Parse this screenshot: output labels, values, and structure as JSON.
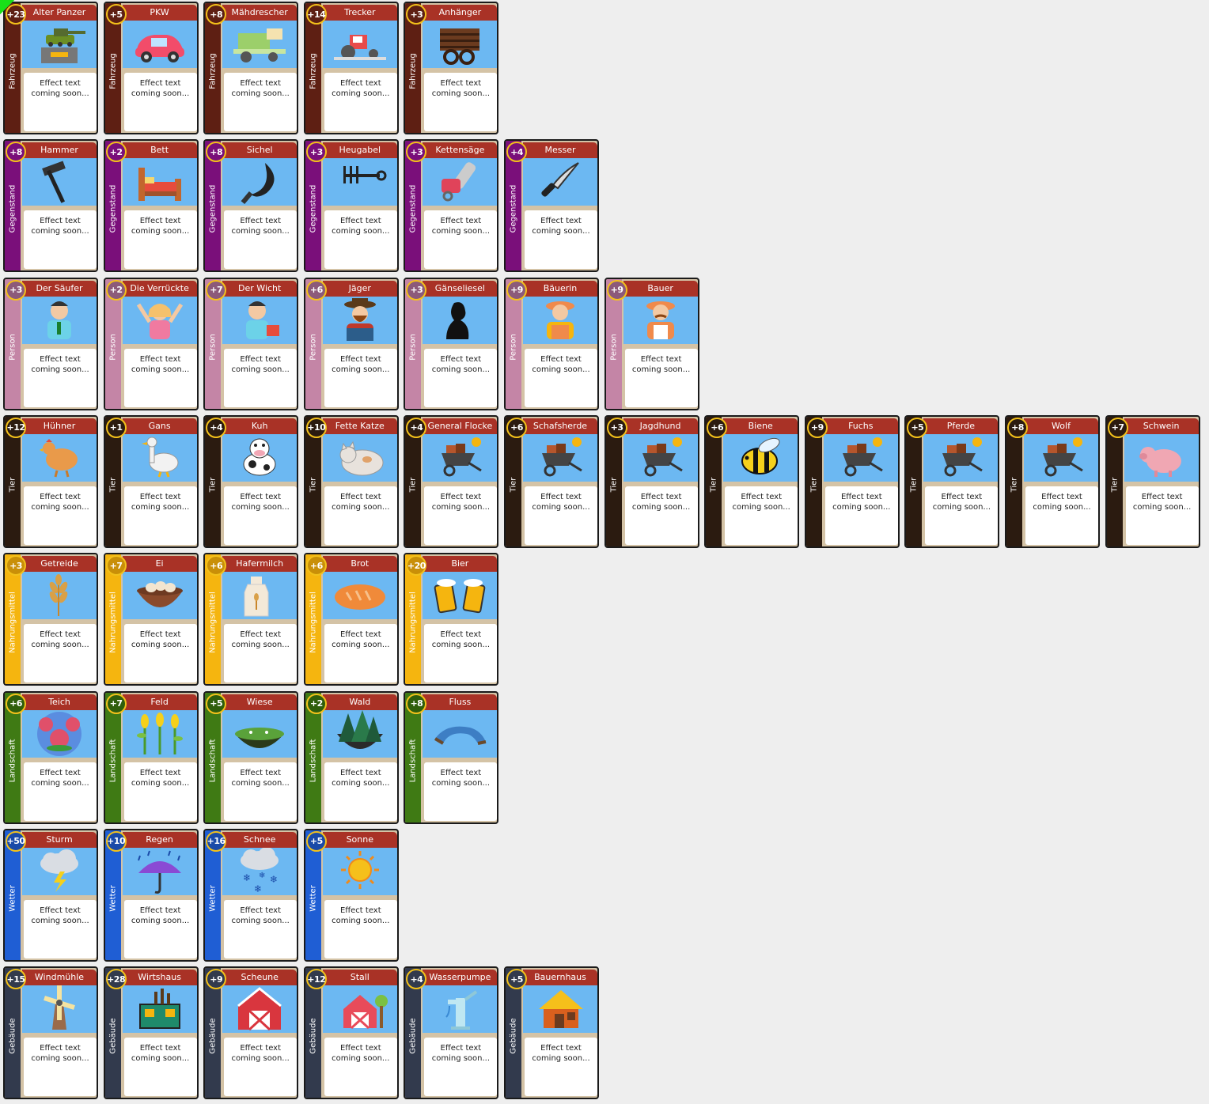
{
  "effect_text": "Effect text coming soon...",
  "categories": [
    {
      "name": "Fahrzeug",
      "band_color": "#5e1f13",
      "badge_color": "#5e1f13",
      "cards": [
        {
          "title": "Alter Panzer",
          "value": "+23",
          "icon": "tank-icon"
        },
        {
          "title": "PKW",
          "value": "+5",
          "icon": "car-icon"
        },
        {
          "title": "Mähdrescher",
          "value": "+8",
          "icon": "harvester-icon"
        },
        {
          "title": "Trecker",
          "value": "+14",
          "icon": "tractor-icon"
        },
        {
          "title": "Anhänger",
          "value": "+3",
          "icon": "trailer-icon"
        }
      ]
    },
    {
      "name": "Gegenstand",
      "band_color": "#7a0f7a",
      "badge_color": "#7a0f7a",
      "cards": [
        {
          "title": "Hammer",
          "value": "+8",
          "icon": "hammer-icon"
        },
        {
          "title": "Bett",
          "value": "+2",
          "icon": "bed-icon"
        },
        {
          "title": "Sichel",
          "value": "+8",
          "icon": "sickle-icon"
        },
        {
          "title": "Heugabel",
          "value": "+3",
          "icon": "pitchfork-icon"
        },
        {
          "title": "Kettensäge",
          "value": "+3",
          "icon": "chainsaw-icon"
        },
        {
          "title": "Messer",
          "value": "+4",
          "icon": "knife-icon"
        }
      ]
    },
    {
      "name": "Person",
      "band_color": "#c485a6",
      "badge_color": "#8c5a7a",
      "cards": [
        {
          "title": "Der Säufer",
          "value": "+3",
          "icon": "drunk-man-icon"
        },
        {
          "title": "Die Verrückte",
          "value": "+2",
          "icon": "crazy-woman-icon"
        },
        {
          "title": "Der Wicht",
          "value": "+7",
          "icon": "small-man-icon"
        },
        {
          "title": "Jäger",
          "value": "+6",
          "icon": "hunter-icon"
        },
        {
          "title": "Gänseliesel",
          "value": "+3",
          "icon": "goose-girl-icon"
        },
        {
          "title": "Bäuerin",
          "value": "+9",
          "icon": "farmer-woman-icon"
        },
        {
          "title": "Bauer",
          "value": "+9",
          "icon": "farmer-icon"
        }
      ]
    },
    {
      "name": "Tier",
      "band_color": "#2b1b10",
      "badge_color": "#2b1b10",
      "cards": [
        {
          "title": "Hühner",
          "value": "+12",
          "icon": "chicken-icon"
        },
        {
          "title": "Gans",
          "value": "+1",
          "icon": "goose-icon"
        },
        {
          "title": "Kuh",
          "value": "+4",
          "icon": "cow-icon"
        },
        {
          "title": "Fette Katze",
          "value": "+10",
          "icon": "cat-icon"
        },
        {
          "title": "General Flocke",
          "value": "+4",
          "icon": "wheelbarrow-icon"
        },
        {
          "title": "Schafsherde",
          "value": "+6",
          "icon": "wheelbarrow-icon"
        },
        {
          "title": "Jagdhund",
          "value": "+3",
          "icon": "wheelbarrow-icon"
        },
        {
          "title": "Biene",
          "value": "+6",
          "icon": "bee-icon"
        },
        {
          "title": "Fuchs",
          "value": "+9",
          "icon": "wheelbarrow-icon"
        },
        {
          "title": "Pferde",
          "value": "+5",
          "icon": "wheelbarrow-icon"
        },
        {
          "title": "Wolf",
          "value": "+8",
          "icon": "wheelbarrow-icon"
        },
        {
          "title": "Schwein",
          "value": "+7",
          "icon": "pig-icon"
        }
      ]
    },
    {
      "name": "Nahrungsmittel",
      "band_color": "#f5b50f",
      "badge_color": "#c98f08",
      "cards": [
        {
          "title": "Getreide",
          "value": "+3",
          "icon": "wheat-icon"
        },
        {
          "title": "Ei",
          "value": "+7",
          "icon": "egg-bowl-icon"
        },
        {
          "title": "Hafermilch",
          "value": "+6",
          "icon": "oat-milk-icon"
        },
        {
          "title": "Brot",
          "value": "+6",
          "icon": "bread-icon"
        },
        {
          "title": "Bier",
          "value": "+20",
          "icon": "beer-icon"
        }
      ]
    },
    {
      "name": "Landschaft",
      "band_color": "#3f7a14",
      "badge_color": "#2f5e0c",
      "cards": [
        {
          "title": "Teich",
          "value": "+6",
          "icon": "pond-icon"
        },
        {
          "title": "Feld",
          "value": "+7",
          "icon": "field-icon"
        },
        {
          "title": "Wiese",
          "value": "+5",
          "icon": "meadow-icon"
        },
        {
          "title": "Wald",
          "value": "+2",
          "icon": "forest-icon"
        },
        {
          "title": "Fluss",
          "value": "+8",
          "icon": "river-icon"
        }
      ]
    },
    {
      "name": "Wetter",
      "band_color": "#1f5ed4",
      "badge_color": "#1a4aa8",
      "cards": [
        {
          "title": "Sturm",
          "value": "+50",
          "icon": "storm-icon"
        },
        {
          "title": "Regen",
          "value": "+10",
          "icon": "umbrella-icon"
        },
        {
          "title": "Schnee",
          "value": "+16",
          "icon": "snow-icon"
        },
        {
          "title": "Sonne",
          "value": "+5",
          "icon": "sun-icon"
        }
      ]
    },
    {
      "name": "Gebäude",
      "band_color": "#323a4d",
      "badge_color": "#323a4d",
      "cards": [
        {
          "title": "Windmühle",
          "value": "+15",
          "icon": "windmill-icon"
        },
        {
          "title": "Wirtshaus",
          "value": "+28",
          "icon": "tavern-icon"
        },
        {
          "title": "Scheune",
          "value": "+9",
          "icon": "barn-icon"
        },
        {
          "title": "Stall",
          "value": "+12",
          "icon": "stable-icon"
        },
        {
          "title": "Wasserpumpe",
          "value": "+4",
          "icon": "water-pump-icon"
        },
        {
          "title": "Bauernhaus",
          "value": "+5",
          "icon": "farmhouse-icon"
        }
      ]
    }
  ]
}
